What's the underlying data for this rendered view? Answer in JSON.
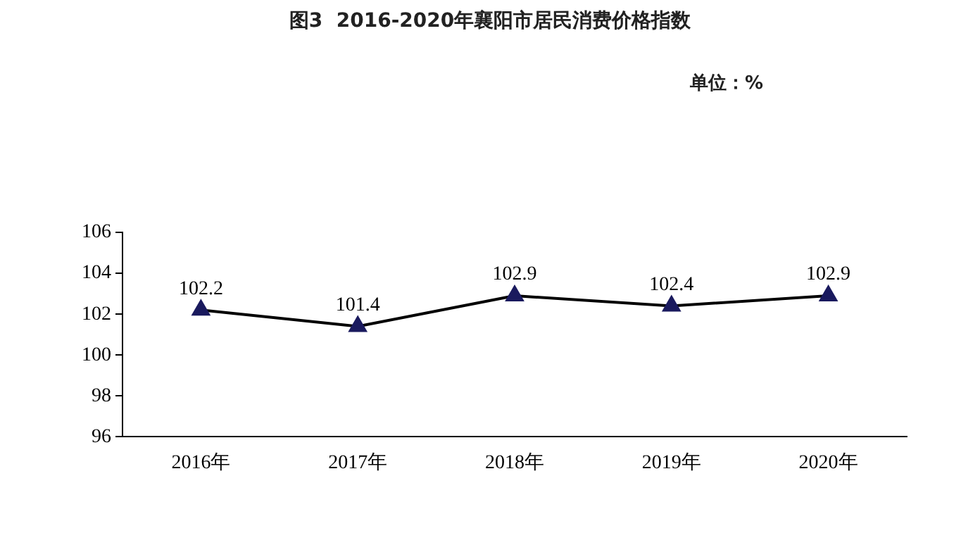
{
  "chart_data": {
    "type": "line",
    "title": "图3  2016-2020年襄阳市居民消费价格指数",
    "annotations": [
      "单位：%"
    ],
    "categories": [
      "2016年",
      "2017年",
      "2018年",
      "2019年",
      "2020年"
    ],
    "series": [
      {
        "color": "#000000",
        "values": [
          102.2,
          101.4,
          102.9,
          102.4,
          102.9
        ]
      }
    ],
    "ylim": [
      96,
      106
    ],
    "yticks": [
      96,
      98,
      100,
      102,
      104,
      106
    ],
    "marker": "triangle",
    "data_labels": true,
    "legend": false,
    "grid": false
  }
}
